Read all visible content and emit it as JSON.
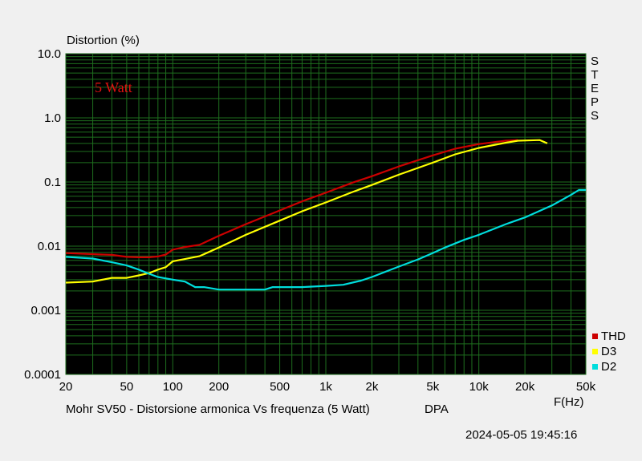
{
  "chart_data": {
    "type": "line",
    "title": "Distortion (%)",
    "annotation": "5 Watt",
    "xlabel": "F(Hz)",
    "x_scale": "log",
    "y_scale": "log",
    "xlim": [
      20,
      50000
    ],
    "ylim": [
      0.0001,
      10
    ],
    "grid": true,
    "legend_position": "bottom-right",
    "side_text": "STEPS",
    "x_ticks": [
      {
        "value": 20,
        "label": "20"
      },
      {
        "value": 50,
        "label": "50"
      },
      {
        "value": 100,
        "label": "100"
      },
      {
        "value": 200,
        "label": "200"
      },
      {
        "value": 500,
        "label": "500"
      },
      {
        "value": 1000,
        "label": "1k"
      },
      {
        "value": 2000,
        "label": "2k"
      },
      {
        "value": 5000,
        "label": "5k"
      },
      {
        "value": 10000,
        "label": "10k"
      },
      {
        "value": 20000,
        "label": "20k"
      },
      {
        "value": 50000,
        "label": "50k"
      }
    ],
    "y_ticks": [
      {
        "value": 10,
        "label": "10.0"
      },
      {
        "value": 1,
        "label": "1.0"
      },
      {
        "value": 0.1,
        "label": "0.1"
      },
      {
        "value": 0.01,
        "label": "0.01"
      },
      {
        "value": 0.001,
        "label": "0.001"
      },
      {
        "value": 0.0001,
        "label": "0.0001"
      }
    ],
    "series": [
      {
        "name": "THD",
        "color": "#cc0000",
        "points": [
          [
            20,
            0.0078
          ],
          [
            30,
            0.0075
          ],
          [
            40,
            0.0073
          ],
          [
            50,
            0.0068
          ],
          [
            60,
            0.0067
          ],
          [
            70,
            0.0067
          ],
          [
            80,
            0.0069
          ],
          [
            90,
            0.0074
          ],
          [
            100,
            0.0088
          ],
          [
            120,
            0.0097
          ],
          [
            150,
            0.0105
          ],
          [
            200,
            0.0145
          ],
          [
            300,
            0.022
          ],
          [
            500,
            0.036
          ],
          [
            700,
            0.05
          ],
          [
            1000,
            0.068
          ],
          [
            1500,
            0.098
          ],
          [
            2000,
            0.123
          ],
          [
            3000,
            0.175
          ],
          [
            5000,
            0.26
          ],
          [
            7000,
            0.33
          ],
          [
            10000,
            0.39
          ],
          [
            15000,
            0.44
          ],
          [
            18000,
            0.45
          ]
        ]
      },
      {
        "name": "D3",
        "color": "#ffff00",
        "points": [
          [
            20,
            0.0027
          ],
          [
            30,
            0.0028
          ],
          [
            40,
            0.0032
          ],
          [
            50,
            0.0032
          ],
          [
            60,
            0.0035
          ],
          [
            70,
            0.0038
          ],
          [
            80,
            0.0043
          ],
          [
            90,
            0.0047
          ],
          [
            100,
            0.0058
          ],
          [
            120,
            0.0063
          ],
          [
            150,
            0.007
          ],
          [
            200,
            0.0095
          ],
          [
            300,
            0.015
          ],
          [
            500,
            0.025
          ],
          [
            700,
            0.035
          ],
          [
            1000,
            0.048
          ],
          [
            1500,
            0.07
          ],
          [
            2000,
            0.09
          ],
          [
            3000,
            0.13
          ],
          [
            5000,
            0.2
          ],
          [
            7000,
            0.27
          ],
          [
            10000,
            0.34
          ],
          [
            15000,
            0.41
          ],
          [
            18000,
            0.44
          ],
          [
            25000,
            0.45
          ],
          [
            28000,
            0.4
          ]
        ]
      },
      {
        "name": "D2",
        "color": "#00dddd",
        "points": [
          [
            20,
            0.0068
          ],
          [
            30,
            0.0064
          ],
          [
            40,
            0.0056
          ],
          [
            50,
            0.005
          ],
          [
            60,
            0.0043
          ],
          [
            70,
            0.0037
          ],
          [
            80,
            0.0033
          ],
          [
            100,
            0.003
          ],
          [
            120,
            0.0028
          ],
          [
            140,
            0.0023
          ],
          [
            160,
            0.0023
          ],
          [
            200,
            0.0021
          ],
          [
            300,
            0.0021
          ],
          [
            400,
            0.0021
          ],
          [
            450,
            0.0023
          ],
          [
            700,
            0.0023
          ],
          [
            1000,
            0.0024
          ],
          [
            1300,
            0.0025
          ],
          [
            1700,
            0.0029
          ],
          [
            2000,
            0.0033
          ],
          [
            3000,
            0.0048
          ],
          [
            4000,
            0.0062
          ],
          [
            5000,
            0.0078
          ],
          [
            6000,
            0.0095
          ],
          [
            8000,
            0.0125
          ],
          [
            10000,
            0.015
          ],
          [
            15000,
            0.022
          ],
          [
            20000,
            0.028
          ],
          [
            30000,
            0.043
          ],
          [
            40000,
            0.063
          ],
          [
            45000,
            0.075
          ],
          [
            50000,
            0.075
          ]
        ]
      }
    ]
  },
  "footer": {
    "caption": "Mohr SV50 - Distorsione armonica Vs frequenza (5 Watt)",
    "source": "DPA",
    "timestamp": "2024-05-05 19:45:16"
  }
}
